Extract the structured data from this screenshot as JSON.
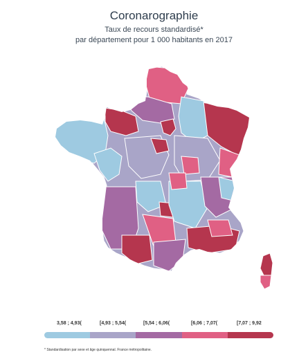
{
  "title": "Coronarographie",
  "subtitle_line1": "Taux de recours standardisé*",
  "subtitle_line2": "par département pour 1 000 habitants en 2017",
  "legend": {
    "classes": [
      {
        "label": "3,58 ; 4,93(",
        "color": "#9ecae1"
      },
      {
        "label": "[4,93 ; 5,54(",
        "color": "#a9a5c8"
      },
      {
        "label": "[5,54 ; 6,06(",
        "color": "#a46aa3"
      },
      {
        "label": "[6,06 ; 7,07(",
        "color": "#e06084"
      },
      {
        "label": "[7,07 ; 9,92",
        "color": "#b5364e"
      }
    ]
  },
  "footnote": "* Standardisation par sexe et âge quinquennal. France métropolitaine."
}
